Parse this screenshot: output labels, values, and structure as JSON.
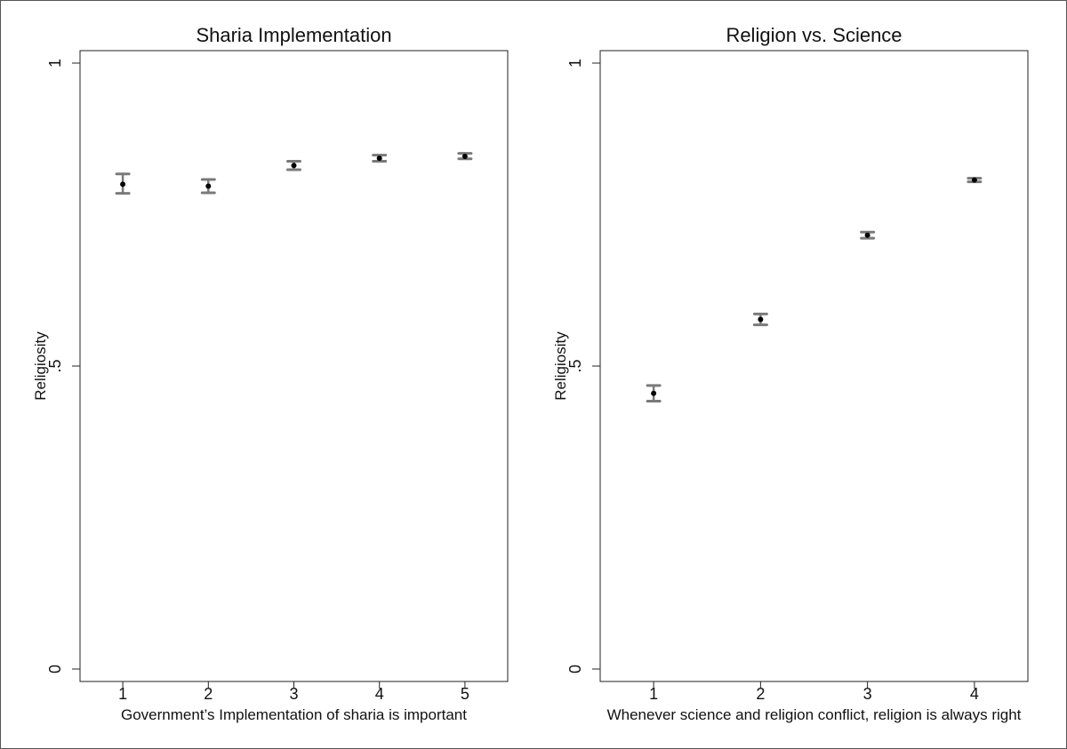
{
  "chart_data": [
    {
      "type": "scatter",
      "title": "Sharia Implementation",
      "xlabel": "Government’s Implementation of sharia is important",
      "ylabel": "Religiosity",
      "xlim": [
        0.5,
        5.5
      ],
      "ylim": [
        0,
        1
      ],
      "grid": false,
      "x_ticks": [
        "1",
        "2",
        "3",
        "4",
        "5"
      ],
      "y_ticks": [
        "0",
        ".5",
        "1"
      ],
      "points": [
        {
          "x": 1,
          "y": 0.8,
          "ci": [
            0.785,
            0.817
          ]
        },
        {
          "x": 2,
          "y": 0.797,
          "ci": [
            0.786,
            0.808
          ]
        },
        {
          "x": 3,
          "y": 0.831,
          "ci": [
            0.824,
            0.838
          ]
        },
        {
          "x": 4,
          "y": 0.843,
          "ci": [
            0.838,
            0.848
          ]
        },
        {
          "x": 5,
          "y": 0.846,
          "ci": [
            0.842,
            0.851
          ]
        }
      ]
    },
    {
      "type": "scatter",
      "title": "Religion vs. Science",
      "xlabel": "Whenever science and religion conflict, religion is always right",
      "ylabel": "Religiosity",
      "xlim": [
        0.5,
        4.5
      ],
      "ylim": [
        0,
        1
      ],
      "grid": false,
      "x_ticks": [
        "1",
        "2",
        "3",
        "4"
      ],
      "y_ticks": [
        "0",
        ".5",
        "1"
      ],
      "points": [
        {
          "x": 1,
          "y": 0.455,
          "ci": [
            0.442,
            0.468
          ]
        },
        {
          "x": 2,
          "y": 0.577,
          "ci": [
            0.568,
            0.586
          ]
        },
        {
          "x": 3,
          "y": 0.716,
          "ci": [
            0.711,
            0.721
          ]
        },
        {
          "x": 4,
          "y": 0.807,
          "ci": [
            0.804,
            0.81
          ]
        }
      ]
    }
  ]
}
